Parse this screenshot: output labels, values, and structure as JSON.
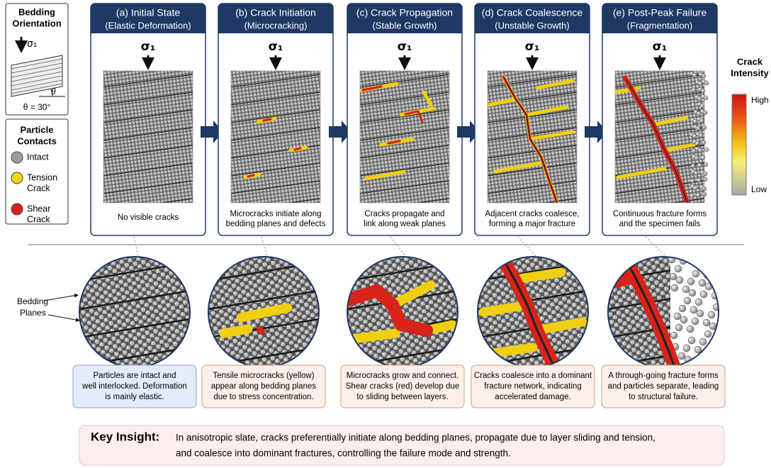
{
  "bedding": {
    "title": [
      "Bedding",
      "Orientation"
    ],
    "load": "σ₁",
    "angle": "θ",
    "angle_value": "θ = 30°"
  },
  "legend": {
    "title": [
      "Particle",
      "Contacts"
    ],
    "items": [
      {
        "label": [
          "Intact"
        ],
        "color": "#9b9b9b"
      },
      {
        "label": [
          "Tension",
          "Crack"
        ],
        "color": "#f2d21b"
      },
      {
        "label": [
          "Shear",
          "Crack"
        ],
        "color": "#d8231a"
      }
    ]
  },
  "stages": [
    {
      "title": "(a) Initial State",
      "subtitle": "(Elastic Deformation)",
      "load": "σ₁",
      "caption": [
        "No visible cracks"
      ],
      "detail": [
        "Particles are intact and",
        "well interlocked. Deformation",
        "is mainly elastic."
      ]
    },
    {
      "title": "(b) Crack Initiation",
      "subtitle": "(Microcracking)",
      "load": "σ₁",
      "caption": [
        "Microcracks initiate along",
        "bedding planes and defects"
      ],
      "detail": [
        "Tensile microcracks (yellow)",
        "appear along bedding planes",
        "due to stress concentration."
      ]
    },
    {
      "title": "(c) Crack Propagation",
      "subtitle": "(Stable Growth)",
      "load": "σ₁",
      "caption": [
        "Cracks propagate and",
        "link along weak planes"
      ],
      "detail": [
        "Microcracks grow and connect.",
        "Shear cracks (red) develop due",
        "to sliding between layers."
      ]
    },
    {
      "title": "(d) Crack Coalescence",
      "subtitle": "(Unstable Growth)",
      "load": "σ₁",
      "caption": [
        "Adjacent cracks coalesce,",
        "forming a major fracture"
      ],
      "detail": [
        "Cracks coalesce into a dominant",
        "fracture network, indicating",
        "accelerated damage."
      ]
    },
    {
      "title": "(e) Post-Peak Failure",
      "subtitle": "(Fragmentation)",
      "load": "σ₁",
      "caption": [
        "Continuous fracture forms",
        "and the specimen fails"
      ],
      "detail": [
        "A through-going fracture forms",
        "and particles separate, leading",
        "to structural failure."
      ]
    }
  ],
  "colorbar": {
    "title": [
      "Crack",
      "Intensity"
    ],
    "high": "High",
    "low": "Low"
  },
  "bedding_planes_label": [
    "Bedding",
    "Planes"
  ],
  "key_insight": {
    "label": "Key Insight:",
    "text": [
      "In anisotropic slate, cracks preferentially initiate along bedding planes, propagate due to layer sliding and tension,",
      "and coalesce into dominant fractures, controlling the failure mode and strength."
    ]
  }
}
